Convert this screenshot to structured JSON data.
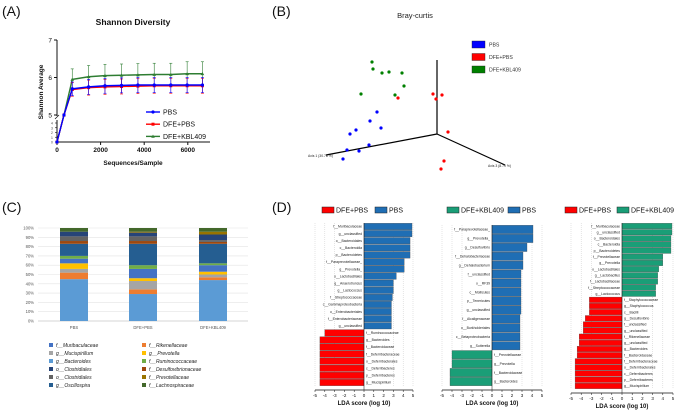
{
  "panels": {
    "a": "(A)",
    "b": "(B)",
    "c": "(C)",
    "d": "(D)"
  },
  "chart_data": [
    {
      "type": "line",
      "title": "Shannon Diversity",
      "xlabel": "Sequences/Sample",
      "ylabel": "Shannon Average",
      "xlim": [
        0,
        7000
      ],
      "ylim": [
        0,
        7
      ],
      "y_axis_break": [
        4,
        5
      ],
      "xticks": [
        "0",
        "2000",
        "4000",
        "6000"
      ],
      "yticks_upper": [
        "5",
        "6",
        "7"
      ],
      "yticks_lower": [
        "0",
        "1",
        "2",
        "3",
        "4"
      ],
      "legend_position": "bottom-right",
      "x": [
        0,
        320,
        700,
        1450,
        2200,
        2960,
        3710,
        4460,
        5220,
        5970,
        6670
      ],
      "series": [
        {
          "name": "PBS",
          "color": "#0000ff",
          "marker": "circle",
          "values": [
            0,
            5.0,
            5.7,
            5.75,
            5.78,
            5.79,
            5.8,
            5.8,
            5.8,
            5.8,
            5.8
          ],
          "errors": [
            0,
            0,
            0.18,
            0.2,
            0.2,
            0.2,
            0.2,
            0.2,
            0.2,
            0.2,
            0.2
          ]
        },
        {
          "name": "DFE+PBS",
          "color": "#ff0000",
          "marker": "square",
          "values": [
            0,
            5.0,
            5.68,
            5.73,
            5.75,
            5.76,
            5.77,
            5.78,
            5.78,
            5.78,
            5.78
          ],
          "errors": [
            0,
            0,
            0.18,
            0.2,
            0.2,
            0.2,
            0.2,
            0.2,
            0.2,
            0.2,
            0.2
          ]
        },
        {
          "name": "DFE+KBL409",
          "color": "#2e7d32",
          "marker": "triangle",
          "values": [
            0,
            5.0,
            5.95,
            6.02,
            6.05,
            6.06,
            6.07,
            6.08,
            6.08,
            6.1,
            6.1
          ],
          "errors": [
            0,
            0,
            0.28,
            0.3,
            0.3,
            0.3,
            0.3,
            0.3,
            0.3,
            0.32,
            0.32
          ]
        }
      ]
    },
    {
      "type": "scatter",
      "title": "Bray-curtis",
      "axis_labels": [
        "Axis 1 (30.78 %)",
        "Axis 3 (8.79 %)"
      ],
      "legend_position": "top-right",
      "series": [
        {
          "name": "PBS",
          "color": "#0000ff",
          "points": [
            [
              -0.6,
              0.22
            ],
            [
              -0.67,
              0.13
            ],
            [
              -0.56,
              0.06
            ],
            [
              -0.81,
              0.04
            ],
            [
              -0.87,
              0.0
            ],
            [
              -0.68,
              -0.11
            ],
            [
              -0.9,
              -0.16
            ],
            [
              -0.78,
              -0.17
            ],
            [
              -0.94,
              -0.25
            ]
          ]
        },
        {
          "name": "DFE+PBS",
          "color": "#ff0000",
          "points": [
            [
              -0.39,
              0.36
            ],
            [
              -0.04,
              0.4
            ],
            [
              -0.01,
              0.35
            ],
            [
              0.05,
              0.39
            ],
            [
              0.11,
              0.02
            ],
            [
              0.07,
              -0.27
            ],
            [
              0.04,
              -0.35
            ]
          ]
        },
        {
          "name": "DFE+KBL409",
          "color": "#008000",
          "points": [
            [
              -0.65,
              0.72
            ],
            [
              -0.64,
              0.65
            ],
            [
              -0.55,
              0.61
            ],
            [
              -0.48,
              0.62
            ],
            [
              -0.35,
              0.61
            ],
            [
              -0.33,
              0.48
            ],
            [
              -0.76,
              0.4
            ],
            [
              -0.42,
              0.39
            ]
          ]
        }
      ]
    },
    {
      "type": "bar",
      "stacked": true,
      "categories": [
        "PBS",
        "DFE+PBS",
        "DFE+KBL409"
      ],
      "yticks": [
        "0%",
        "10%",
        "20%",
        "30%",
        "40%",
        "50%",
        "60%",
        "70%",
        "80%",
        "90%",
        "100%"
      ],
      "ylim": [
        0,
        100
      ],
      "legend_position": "bottom",
      "series": [
        {
          "name": "f__Muribaculaceae",
          "color": "#4472c4",
          "values": [
            5,
            10,
            7
          ]
        },
        {
          "name": "g__Mucispirillum",
          "color": "#a5a5a5",
          "values": [
            4,
            9,
            3
          ]
        },
        {
          "name": "g__Bacteroides",
          "color": "#5b9bd5",
          "values": [
            45,
            29,
            44
          ]
        },
        {
          "name": "o__Clostridiales",
          "color": "#264478",
          "values": [
            5,
            4,
            6
          ]
        },
        {
          "name": "o__Clostridiales",
          "color": "#636363",
          "values": [
            5,
            5,
            2
          ]
        },
        {
          "name": "g__Oscillospira",
          "color": "#255e91",
          "values": [
            13,
            23,
            21
          ]
        },
        {
          "name": "f__Rikenellaceae",
          "color": "#ed7d31",
          "values": [
            7,
            5,
            3
          ]
        },
        {
          "name": "g__Prevotella",
          "color": "#ffc000",
          "values": [
            6,
            3,
            3
          ]
        },
        {
          "name": "f__Ruminococcaceae",
          "color": "#70ad47",
          "values": [
            3,
            4,
            2
          ]
        },
        {
          "name": "f__Desulfovibrionaceae",
          "color": "#9e480e",
          "values": [
            3,
            3,
            2
          ]
        },
        {
          "name": "f__Prevotellaceae",
          "color": "#997300",
          "values": [
            0,
            1,
            3
          ]
        },
        {
          "name": "f__Lachnospiraceae",
          "color": "#43682b",
          "values": [
            4,
            4,
            4
          ]
        }
      ],
      "stack_order": [
        2,
        6,
        1,
        7,
        0,
        8,
        5,
        9,
        4,
        3,
        10,
        11
      ]
    },
    {
      "type": "bar",
      "orientation": "horizontal",
      "xlabel": "LDA score (log 10)",
      "xlim": [
        -5,
        5
      ],
      "xticks": [
        "-5",
        "-4",
        "-3",
        "-2",
        "-1",
        "0",
        "1",
        "2",
        "3",
        "4",
        "5"
      ],
      "legend": [
        {
          "name": "DFE+PBS",
          "color": "#ff0000"
        },
        {
          "name": "PBS",
          "color": "#1f6eb4"
        }
      ],
      "bars": [
        {
          "label": "f__Muribaculaceae",
          "value": 4.9,
          "group": 1
        },
        {
          "label": "g__unclassified",
          "value": 4.9,
          "group": 1
        },
        {
          "label": "o__Bacteroidales",
          "value": 4.7,
          "group": 1
        },
        {
          "label": "c__Bacteroidia",
          "value": 4.7,
          "group": 1
        },
        {
          "label": "p__Bacteroidetes",
          "value": 4.7,
          "group": 1
        },
        {
          "label": "f__Paraprevotellaceae_",
          "value": 4.1,
          "group": 1
        },
        {
          "label": "g__Prevotella_",
          "value": 4.1,
          "group": 1
        },
        {
          "label": "o__Lactobacillales",
          "value": 3.3,
          "group": 1
        },
        {
          "label": "g__Anaerotruncus",
          "value": 3.0,
          "group": 1
        },
        {
          "label": "g__Lactococcus",
          "value": 3.0,
          "group": 1
        },
        {
          "label": "f__Streptococcaceae",
          "value": 2.9,
          "group": 1
        },
        {
          "label": "c__Gammaproteobacteria",
          "value": 2.8,
          "group": 1
        },
        {
          "label": "o__Enterobacteriales",
          "value": 2.8,
          "group": 1
        },
        {
          "label": "f__Enterobacteriaceae",
          "value": 2.8,
          "group": 1
        },
        {
          "label": "g__unclassified",
          "value": 2.8,
          "group": 1
        },
        {
          "label": "f__Ruminococcaceae",
          "value": -4.0,
          "group": 0
        },
        {
          "label": "g__Bacteroides",
          "value": -4.5,
          "group": 0
        },
        {
          "label": "f__Bacteroidaceae",
          "value": -4.5,
          "group": 0
        },
        {
          "label": "f__Deferribacteraceae",
          "value": -4.5,
          "group": 0
        },
        {
          "label": "o__Deferribacterales",
          "value": -4.5,
          "group": 0
        },
        {
          "label": "c__Deferribacteres",
          "value": -4.5,
          "group": 0
        },
        {
          "label": "p__Deferribacteres",
          "value": -4.5,
          "group": 0
        },
        {
          "label": "g__Mucispirillum",
          "value": -4.5,
          "group": 0
        }
      ]
    },
    {
      "type": "bar",
      "orientation": "horizontal",
      "xlabel": "LDA score (log 10)",
      "xlim": [
        -5,
        5
      ],
      "xticks": [
        "-5",
        "-4",
        "-3",
        "-2",
        "-1",
        "0",
        "1",
        "2",
        "3",
        "4",
        "5"
      ],
      "legend": [
        {
          "name": "DFE+KBL409",
          "color": "#1a9e77"
        },
        {
          "name": "PBS",
          "color": "#1f6eb4"
        }
      ],
      "bars": [
        {
          "label": "f__Paraprevotellaceae_",
          "value": 4.1,
          "group": 1
        },
        {
          "label": "g__Prevotella_",
          "value": 4.1,
          "group": 1
        },
        {
          "label": "g__Desulfovibrio",
          "value": 3.5,
          "group": 1
        },
        {
          "label": "f__Dehalobacteriaceae",
          "value": 3.1,
          "group": 1
        },
        {
          "label": "g__Dehalobacterium",
          "value": 3.1,
          "group": 1
        },
        {
          "label": "f__unclassified",
          "value": 2.9,
          "group": 1
        },
        {
          "label": "o__RF39",
          "value": 2.9,
          "group": 1
        },
        {
          "label": "c__Mollicutes",
          "value": 2.9,
          "group": 1
        },
        {
          "label": "p__Tenericutes",
          "value": 2.9,
          "group": 1
        },
        {
          "label": "g__unclassified",
          "value": 2.9,
          "group": 1
        },
        {
          "label": "f__Alcaligenaceae",
          "value": 2.8,
          "group": 1
        },
        {
          "label": "o__Burkholderiales",
          "value": 2.8,
          "group": 1
        },
        {
          "label": "c__Betaproteobacteria",
          "value": 2.8,
          "group": 1
        },
        {
          "label": "g__Sutterella",
          "value": 2.8,
          "group": 1
        },
        {
          "label": "f__Prevotellaceae",
          "value": -4.0,
          "group": 0
        },
        {
          "label": "g__Prevotella",
          "value": -4.0,
          "group": 0
        },
        {
          "label": "f__Bacteroidaceae",
          "value": -4.2,
          "group": 0
        },
        {
          "label": "g__Bacteroides",
          "value": -4.2,
          "group": 0
        }
      ]
    },
    {
      "type": "bar",
      "orientation": "horizontal",
      "xlabel": "LDA score (log 10)",
      "xlim": [
        -5,
        5
      ],
      "xticks": [
        "-5",
        "-4",
        "-3",
        "-2",
        "-1",
        "0",
        "1",
        "2",
        "3",
        "4",
        "5"
      ],
      "legend": [
        {
          "name": "DFE+PBS",
          "color": "#ff0000"
        },
        {
          "name": "DFE+KBL409",
          "color": "#1a9e77"
        }
      ],
      "bars": [
        {
          "label": "f__Muribaculaceae",
          "value": 4.9,
          "group": 1
        },
        {
          "label": "g__unclassified",
          "value": 4.9,
          "group": 1
        },
        {
          "label": "o__Bacteroidales",
          "value": 4.8,
          "group": 1
        },
        {
          "label": "c__Bacteroidia",
          "value": 4.8,
          "group": 1
        },
        {
          "label": "p__Bacteroidetes",
          "value": 4.8,
          "group": 1
        },
        {
          "label": "f__Prevotellaceae",
          "value": 4.0,
          "group": 1
        },
        {
          "label": "g__Prevotella",
          "value": 4.0,
          "group": 1
        },
        {
          "label": "o__Lactobacillales",
          "value": 3.6,
          "group": 1
        },
        {
          "label": "g__Lactobacillus",
          "value": 3.5,
          "group": 1
        },
        {
          "label": "f__Lactobacillaceae",
          "value": 3.5,
          "group": 1
        },
        {
          "label": "f__Streptococcaceae",
          "value": 3.3,
          "group": 1
        },
        {
          "label": "g__Lactococcus",
          "value": 3.3,
          "group": 1
        },
        {
          "label": "f__Staphylococcaceae",
          "value": -3.2,
          "group": 0
        },
        {
          "label": "g__Staphylococcus",
          "value": -3.2,
          "group": 0
        },
        {
          "label": "c__Bacilli",
          "value": -3.2,
          "group": 0
        },
        {
          "label": "g__Desulfovibrio",
          "value": -3.6,
          "group": 0
        },
        {
          "label": "f__unclassified",
          "value": -3.8,
          "group": 0
        },
        {
          "label": "g__unclassified",
          "value": -3.8,
          "group": 0
        },
        {
          "label": "f__Rikenellaceae",
          "value": -4.2,
          "group": 0
        },
        {
          "label": "g__unclassified",
          "value": -4.2,
          "group": 0
        },
        {
          "label": "g__Bacteroides",
          "value": -4.4,
          "group": 0
        },
        {
          "label": "f__Bacteroidaceae",
          "value": -4.4,
          "group": 0
        },
        {
          "label": "f__Deferribacteraceae",
          "value": -4.6,
          "group": 0
        },
        {
          "label": "o__Deferribacterales",
          "value": -4.6,
          "group": 0
        },
        {
          "label": "c__Deferribacteres",
          "value": -4.6,
          "group": 0
        },
        {
          "label": "p__Deferribacteres",
          "value": -4.6,
          "group": 0
        },
        {
          "label": "g__Mucispirillum",
          "value": -4.6,
          "group": 0
        }
      ]
    }
  ]
}
